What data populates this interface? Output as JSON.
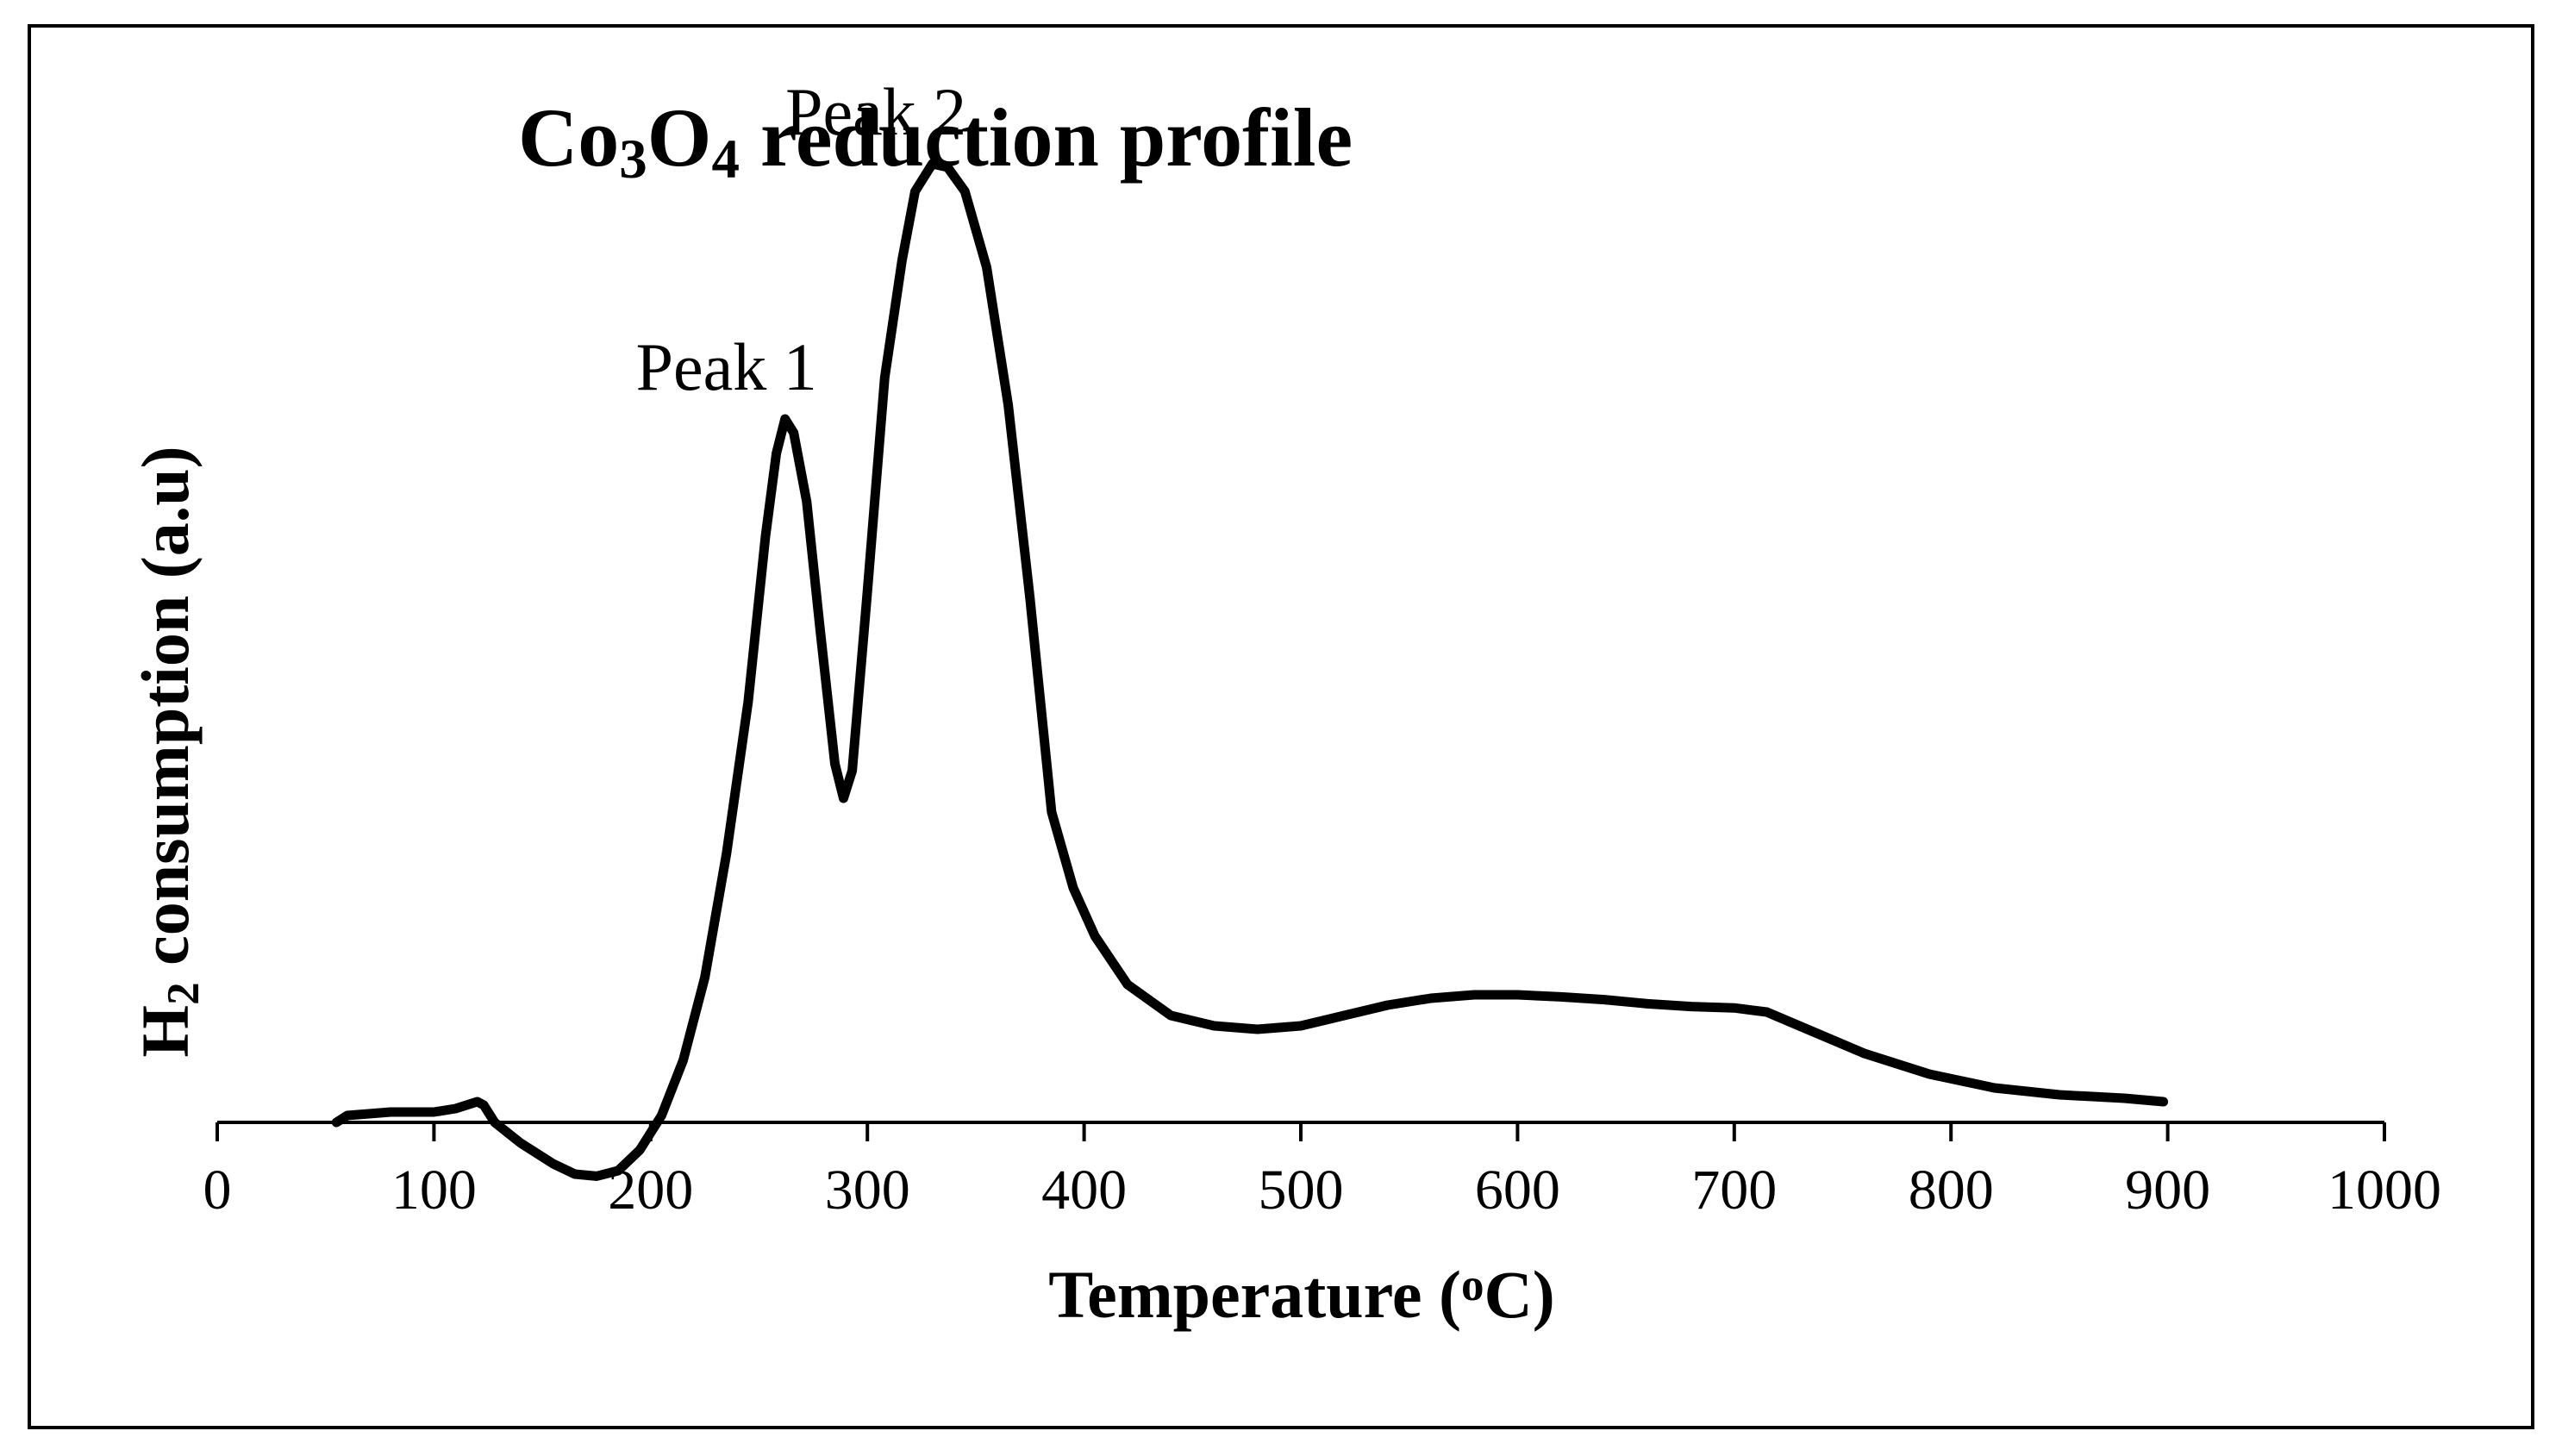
{
  "chart_data": {
    "type": "line",
    "title": {
      "parts": [
        {
          "text": "Co",
          "sub": false
        },
        {
          "text": "3",
          "sub": true
        },
        {
          "text": "O",
          "sub": false
        },
        {
          "text": "4",
          "sub": true
        },
        {
          "text": " reduction profile",
          "sub": false
        }
      ]
    },
    "xlabel": {
      "parts": [
        {
          "text": "Temperature (",
          "sup": false
        },
        {
          "text": "o",
          "sup": true
        },
        {
          "text": "C)",
          "sup": false
        }
      ]
    },
    "ylabel": {
      "parts": [
        {
          "text": "H",
          "sub": false
        },
        {
          "text": "2",
          "sub": true
        },
        {
          "text": " consumption  (a.u)",
          "sub": false
        }
      ]
    },
    "xlim": [
      0,
      1000
    ],
    "ylim": [
      -0.08,
      1.4
    ],
    "x_ticks": [
      0,
      100,
      200,
      300,
      400,
      500,
      600,
      700,
      800,
      900,
      1000
    ],
    "y_axis_shown": false,
    "grid": false,
    "legend": "none",
    "series": [
      {
        "name": "H2 consumption",
        "color": "#000000",
        "points": [
          [
            55,
            0.0
          ],
          [
            60,
            0.01
          ],
          [
            80,
            0.015
          ],
          [
            100,
            0.015
          ],
          [
            110,
            0.02
          ],
          [
            120,
            0.03
          ],
          [
            123,
            0.025
          ],
          [
            128,
            0.0
          ],
          [
            140,
            -0.03
          ],
          [
            155,
            -0.06
          ],
          [
            165,
            -0.075
          ],
          [
            175,
            -0.078
          ],
          [
            185,
            -0.07
          ],
          [
            195,
            -0.04
          ],
          [
            205,
            0.01
          ],
          [
            215,
            0.09
          ],
          [
            225,
            0.21
          ],
          [
            235,
            0.39
          ],
          [
            245,
            0.61
          ],
          [
            253,
            0.85
          ],
          [
            258,
            0.97
          ],
          [
            262,
            1.02
          ],
          [
            266,
            1.0
          ],
          [
            272,
            0.9
          ],
          [
            278,
            0.72
          ],
          [
            285,
            0.52
          ],
          [
            289,
            0.47
          ],
          [
            293,
            0.51
          ],
          [
            300,
            0.77
          ],
          [
            308,
            1.08
          ],
          [
            316,
            1.25
          ],
          [
            322,
            1.35
          ],
          [
            330,
            1.39
          ],
          [
            337,
            1.385
          ],
          [
            345,
            1.35
          ],
          [
            355,
            1.24
          ],
          [
            365,
            1.04
          ],
          [
            375,
            0.76
          ],
          [
            385,
            0.45
          ],
          [
            395,
            0.34
          ],
          [
            405,
            0.27
          ],
          [
            420,
            0.2
          ],
          [
            440,
            0.155
          ],
          [
            460,
            0.14
          ],
          [
            480,
            0.135
          ],
          [
            500,
            0.14
          ],
          [
            520,
            0.155
          ],
          [
            540,
            0.17
          ],
          [
            560,
            0.18
          ],
          [
            580,
            0.185
          ],
          [
            600,
            0.185
          ],
          [
            620,
            0.182
          ],
          [
            640,
            0.178
          ],
          [
            660,
            0.172
          ],
          [
            680,
            0.168
          ],
          [
            700,
            0.166
          ],
          [
            715,
            0.16
          ],
          [
            730,
            0.14
          ],
          [
            760,
            0.1
          ],
          [
            790,
            0.07
          ],
          [
            820,
            0.05
          ],
          [
            850,
            0.04
          ],
          [
            880,
            0.035
          ],
          [
            898,
            0.03
          ]
        ]
      }
    ],
    "annotations": [
      {
        "text": "Peak 1",
        "x": 262,
        "y": 1.02
      },
      {
        "text": "Peak 2",
        "x": 331,
        "y": 1.39
      }
    ]
  },
  "colors": {
    "line": "#000000",
    "background": "#ffffff",
    "frame": "#000000"
  }
}
